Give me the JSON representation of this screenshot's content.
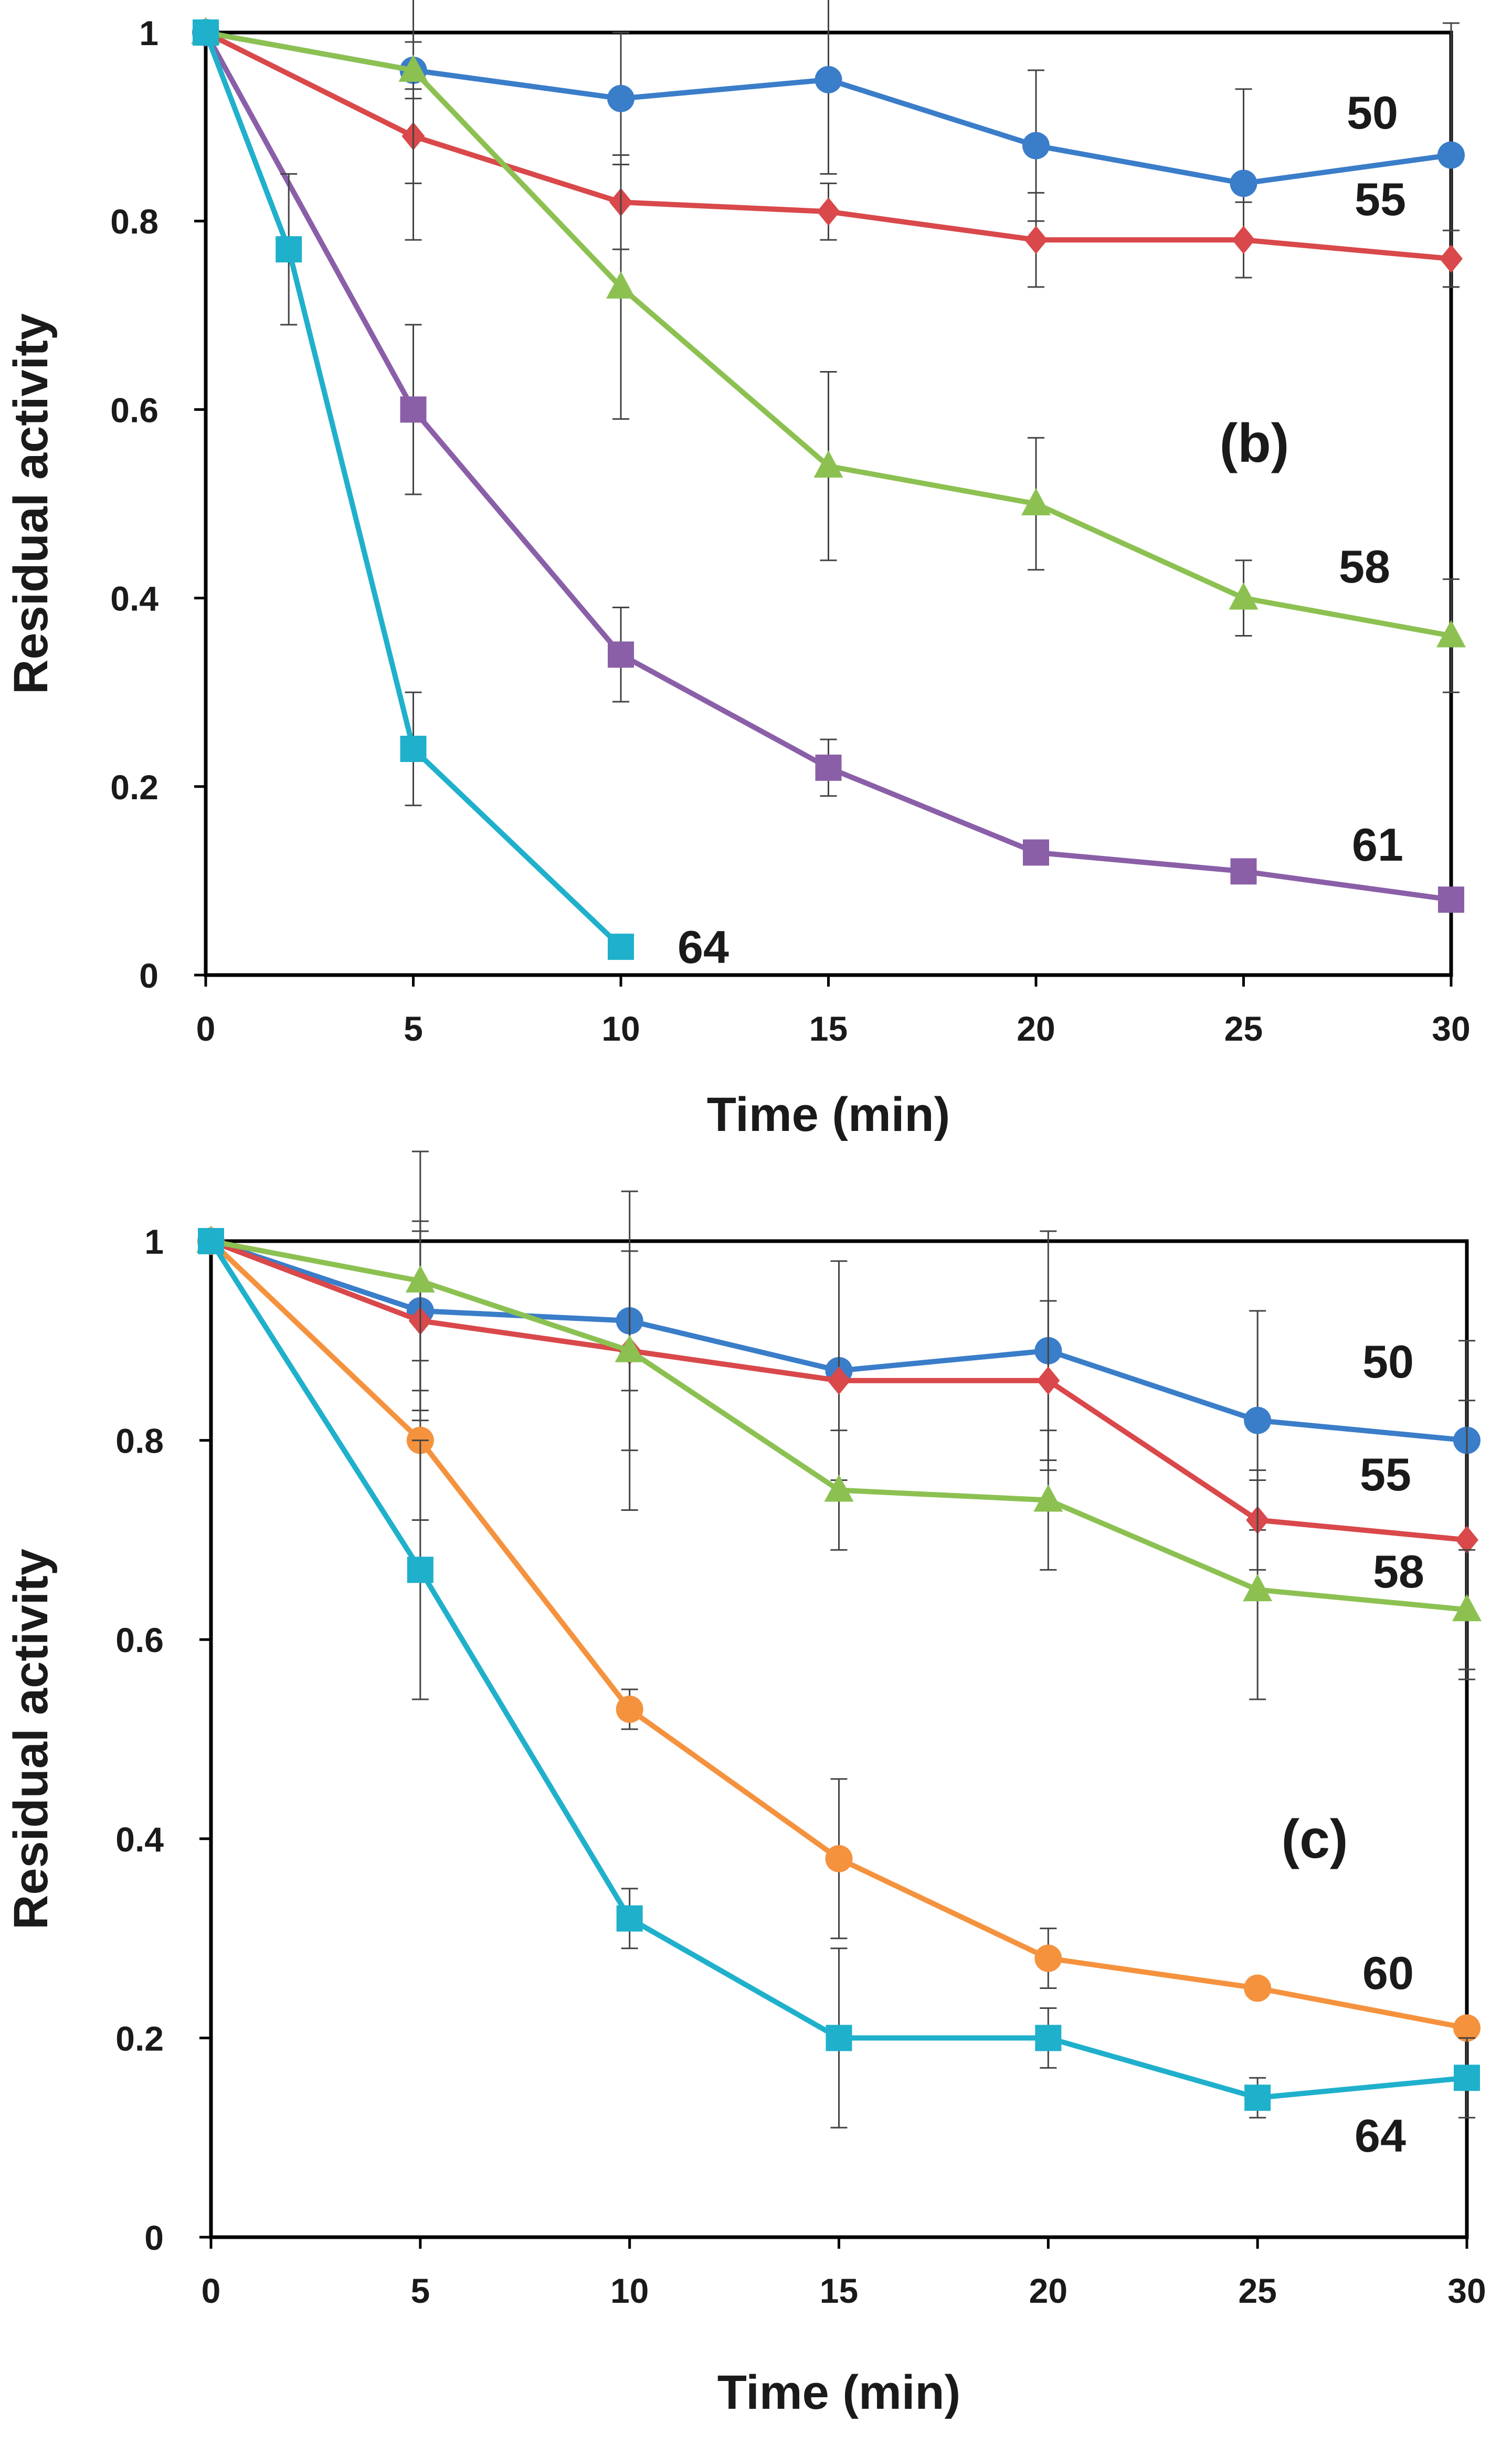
{
  "chart_data": [
    {
      "type": "line",
      "panel": "(b)",
      "title": "",
      "xlabel": "Time (min)",
      "ylabel": "Residual activity",
      "xlim": [
        0,
        30
      ],
      "ylim": [
        0,
        1
      ],
      "xticks": [
        "0",
        "5",
        "10",
        "15",
        "20",
        "25",
        "30"
      ],
      "yticks": [
        "0",
        "0.2",
        "0.4",
        "0.6",
        "0.8",
        "1"
      ],
      "grid": false,
      "series": [
        {
          "name": "50",
          "color": "#3a7dc9",
          "marker": "circle",
          "x": [
            0,
            5,
            10,
            15,
            20,
            25,
            30
          ],
          "y": [
            1.0,
            0.96,
            0.93,
            0.95,
            0.88,
            0.84,
            0.87
          ],
          "err": [
            0,
            0.03,
            0.07,
            0.1,
            0.08,
            0.1,
            0.14
          ]
        },
        {
          "name": "55",
          "color": "#d9484a",
          "marker": "diamond",
          "x": [
            0,
            5,
            10,
            15,
            20,
            25,
            30
          ],
          "y": [
            1.0,
            0.89,
            0.82,
            0.81,
            0.78,
            0.78,
            0.76
          ],
          "err": [
            0,
            0.05,
            0.05,
            0.03,
            0.05,
            0.04,
            0.03
          ]
        },
        {
          "name": "58",
          "color": "#8cc152",
          "marker": "triangle",
          "x": [
            0,
            5,
            10,
            15,
            20,
            25,
            30
          ],
          "y": [
            1.0,
            0.96,
            0.73,
            0.54,
            0.5,
            0.4,
            0.36
          ],
          "err": [
            0,
            0.18,
            0.14,
            0.1,
            0.07,
            0.04,
            0.06
          ]
        },
        {
          "name": "61",
          "color": "#8a5fa8",
          "marker": "square",
          "x": [
            0,
            5,
            10,
            15,
            20,
            25,
            30
          ],
          "y": [
            1.0,
            0.6,
            0.34,
            0.22,
            0.13,
            0.11,
            0.08
          ],
          "err": [
            0,
            0.09,
            0.05,
            0.03,
            0.01,
            0.01,
            0.01
          ]
        },
        {
          "name": "64",
          "color": "#1fb0cc",
          "marker": "square",
          "x": [
            0,
            2,
            5,
            10
          ],
          "y": [
            1.0,
            0.77,
            0.24,
            0.03
          ],
          "err": [
            0,
            0.08,
            0.06,
            0.01
          ]
        }
      ]
    },
    {
      "type": "line",
      "panel": "(c)",
      "title": "",
      "xlabel": "Time (min)",
      "ylabel": "Residual activity",
      "xlim": [
        0,
        30
      ],
      "ylim": [
        0,
        1
      ],
      "xticks": [
        "0",
        "5",
        "10",
        "15",
        "20",
        "25",
        "30"
      ],
      "yticks": [
        "0",
        "0.2",
        "0.4",
        "0.6",
        "0.8",
        "1"
      ],
      "grid": false,
      "series": [
        {
          "name": "50",
          "color": "#3a7dc9",
          "marker": "circle",
          "x": [
            0,
            5,
            10,
            15,
            20,
            25,
            30
          ],
          "y": [
            1.0,
            0.93,
            0.92,
            0.87,
            0.89,
            0.82,
            0.8
          ],
          "err": [
            0,
            0.08,
            0.07,
            0.11,
            0.12,
            0.11,
            0.1
          ]
        },
        {
          "name": "55",
          "color": "#d9484a",
          "marker": "diamond",
          "x": [
            0,
            5,
            10,
            15,
            20,
            25,
            30
          ],
          "y": [
            1.0,
            0.92,
            0.89,
            0.86,
            0.86,
            0.72,
            0.7
          ],
          "err": [
            0,
            0.1,
            0.1,
            0.12,
            0.08,
            0.05,
            0.14
          ]
        },
        {
          "name": "58",
          "color": "#8cc152",
          "marker": "triangle",
          "x": [
            0,
            5,
            10,
            15,
            20,
            25,
            30
          ],
          "y": [
            1.0,
            0.96,
            0.89,
            0.75,
            0.74,
            0.65,
            0.63
          ],
          "err": [
            0,
            0.13,
            0.16,
            0.06,
            0.07,
            0.11,
            0.06
          ]
        },
        {
          "name": "60",
          "color": "#f5923e",
          "marker": "circle",
          "x": [
            0,
            5,
            10,
            15,
            20,
            25,
            30
          ],
          "y": [
            1.0,
            0.8,
            0.53,
            0.38,
            0.28,
            0.25,
            0.21
          ],
          "err": [
            0,
            0.08,
            0.02,
            0.08,
            0.03,
            0.01,
            0.01
          ]
        },
        {
          "name": "64",
          "color": "#1fb0cc",
          "marker": "square",
          "x": [
            0,
            5,
            10,
            15,
            20,
            25,
            30
          ],
          "y": [
            1.0,
            0.67,
            0.32,
            0.2,
            0.2,
            0.14,
            0.16
          ],
          "err": [
            0,
            0.13,
            0.03,
            0.09,
            0.03,
            0.02,
            0.04
          ]
        }
      ]
    }
  ]
}
